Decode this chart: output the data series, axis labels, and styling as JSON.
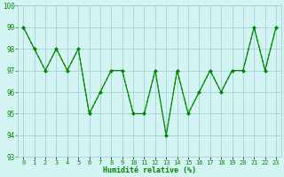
{
  "x": [
    0,
    1,
    2,
    3,
    4,
    5,
    6,
    7,
    8,
    9,
    10,
    11,
    12,
    13,
    14,
    15,
    16,
    17,
    18,
    19,
    20,
    21,
    22,
    23
  ],
  "y": [
    99,
    98,
    97,
    98,
    97,
    98,
    95,
    96,
    97,
    97,
    95,
    95,
    97,
    94,
    97,
    95,
    96,
    97,
    96,
    97,
    97,
    99,
    97,
    99
  ],
  "ylim": [
    93,
    100
  ],
  "yticks": [
    93,
    94,
    95,
    96,
    97,
    98,
    99,
    100
  ],
  "xlabel": "Humidité relative (%)",
  "line_color": "#008800",
  "bg_color": "#d4f4f4",
  "grid_color": "#99cccc",
  "tick_color": "#008800",
  "xlabel_color": "#008800",
  "font_family": "monospace"
}
